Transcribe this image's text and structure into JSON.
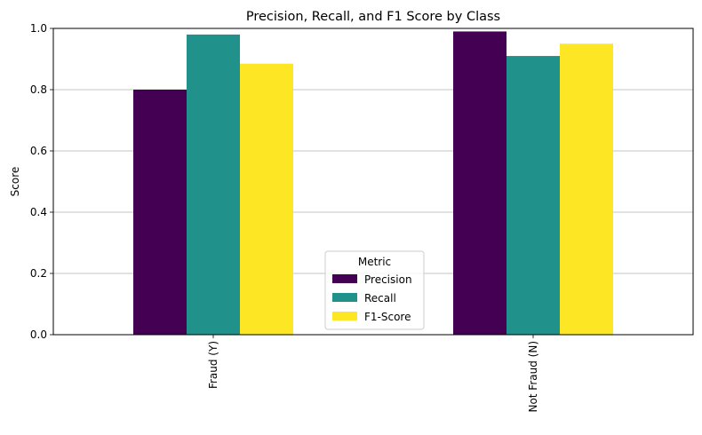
{
  "chart_data": {
    "type": "bar",
    "title": "Precision, Recall, and F1 Score by Class",
    "xlabel": "",
    "ylabel": "Score",
    "categories": [
      "Fraud (Y)",
      "Not Fraud (N)"
    ],
    "series": [
      {
        "name": "Precision",
        "values": [
          0.8,
          0.99
        ],
        "color": "#440154"
      },
      {
        "name": "Recall",
        "values": [
          0.98,
          0.91
        ],
        "color": "#21918c"
      },
      {
        "name": "F1-Score",
        "values": [
          0.885,
          0.95
        ],
        "color": "#fde725"
      }
    ],
    "ylim": [
      0,
      1.0
    ],
    "yticks": [
      "0.0",
      "0.2",
      "0.4",
      "0.6",
      "0.8",
      "1.0"
    ],
    "ytick_values": [
      0,
      0.2,
      0.4,
      0.6,
      0.8,
      1.0
    ],
    "grid": "y-axis only",
    "legend": {
      "title": "Metric",
      "placement": "lower-center"
    }
  }
}
